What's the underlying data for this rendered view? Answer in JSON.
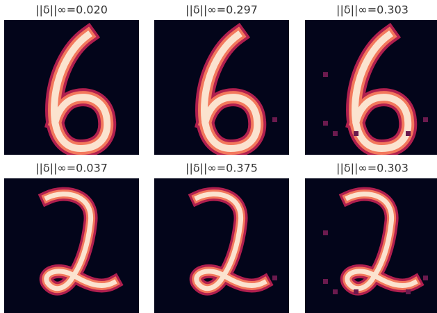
{
  "panels": [
    {
      "title": "||δ||∞=0.020"
    },
    {
      "title": "||δ||∞=0.297"
    },
    {
      "title": "||δ||∞=0.303"
    },
    {
      "title": "||δ||∞=0.037"
    },
    {
      "title": "||δ||∞=0.375"
    },
    {
      "title": "||δ||∞=0.303"
    }
  ]
}
